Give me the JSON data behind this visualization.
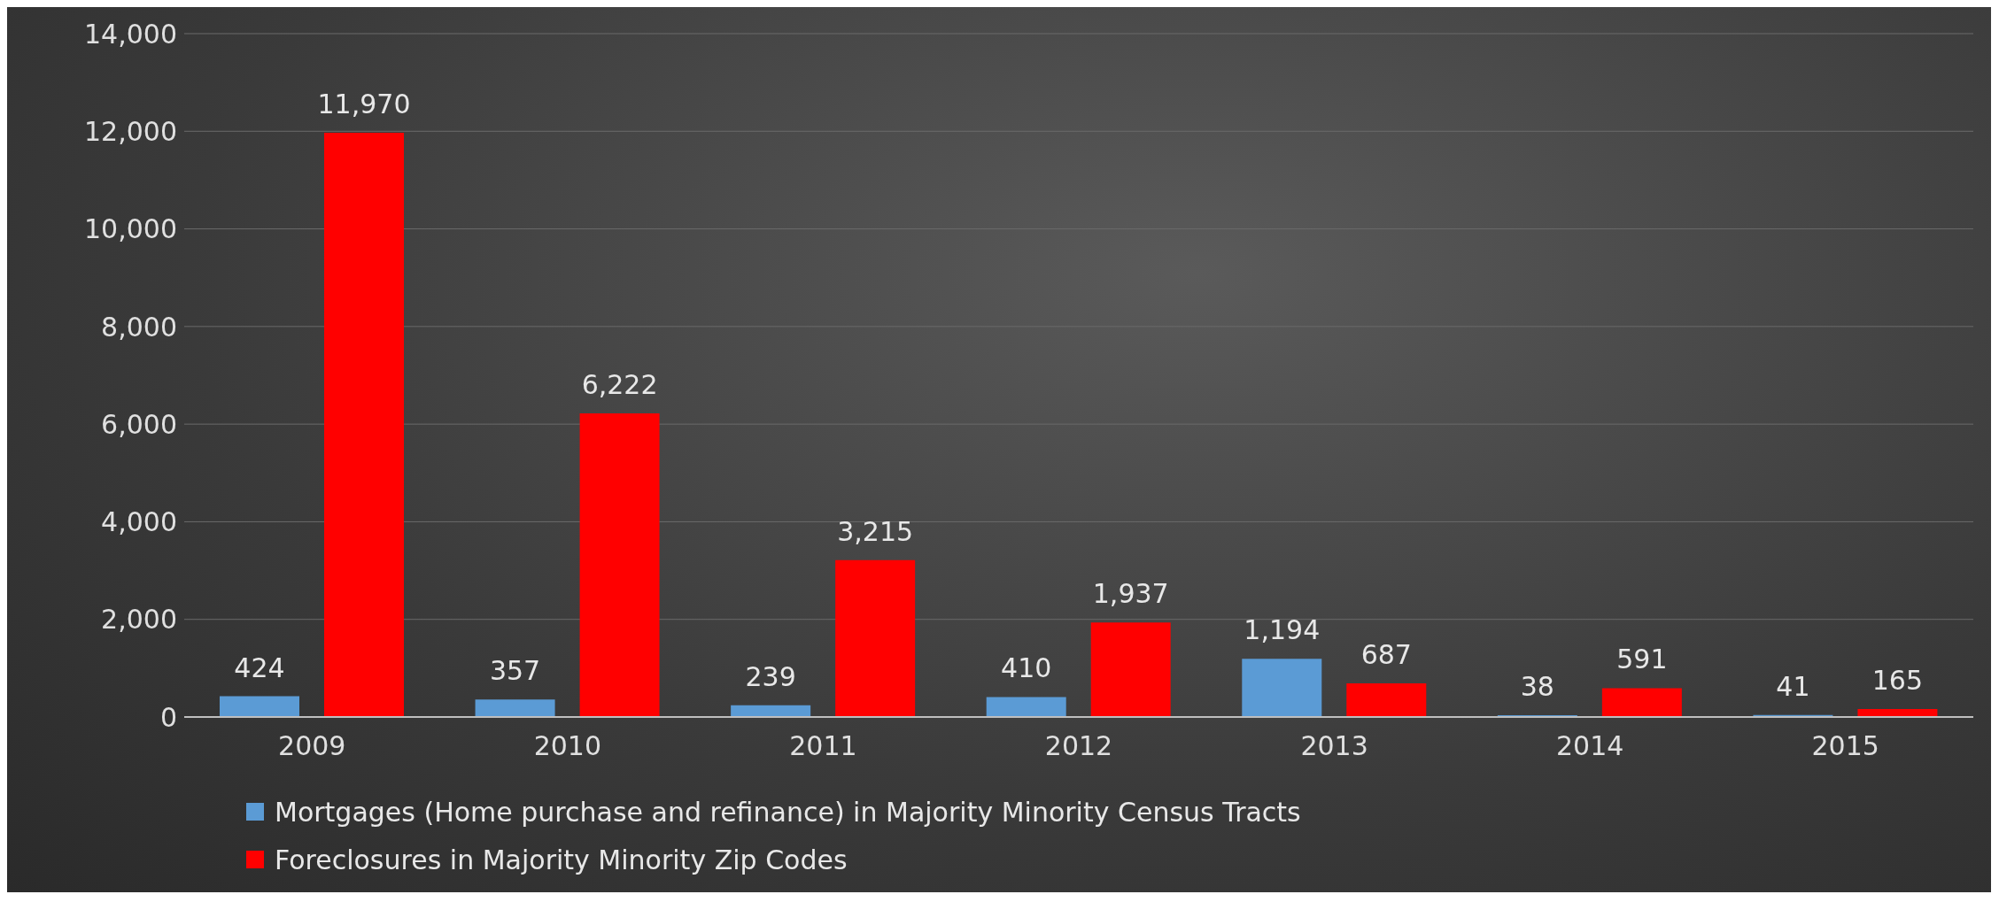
{
  "chart_data": {
    "type": "bar",
    "categories": [
      "2009",
      "2010",
      "2011",
      "2012",
      "2013",
      "2014",
      "2015"
    ],
    "series": [
      {
        "name": "Mortgages (Home purchase and refinance) in Majority Minority Census Tracts",
        "color": "#5b9bd5",
        "values": [
          424,
          357,
          239,
          410,
          1194,
          38,
          41
        ],
        "value_labels": [
          "424",
          "357",
          "239",
          "410",
          "1,194",
          "38",
          "41"
        ]
      },
      {
        "name": "Foreclosures in Majority Minority Zip Codes",
        "color": "#ff0000",
        "values": [
          11970,
          6222,
          3215,
          1937,
          687,
          591,
          165
        ],
        "value_labels": [
          "11,970",
          "6,222",
          "3,215",
          "1,937",
          "687",
          "591",
          "165"
        ]
      }
    ],
    "ylim": [
      0,
      14000
    ],
    "yticks": [
      {
        "value": 0,
        "label": "0"
      },
      {
        "value": 2000,
        "label": "2,000"
      },
      {
        "value": 4000,
        "label": "4,000"
      },
      {
        "value": 6000,
        "label": "6,000"
      },
      {
        "value": 8000,
        "label": "8,000"
      },
      {
        "value": 10000,
        "label": "10,000"
      },
      {
        "value": 12000,
        "label": "12,000"
      },
      {
        "value": 14000,
        "label": "14,000"
      }
    ],
    "grid": "y",
    "legend": "bottom left"
  }
}
